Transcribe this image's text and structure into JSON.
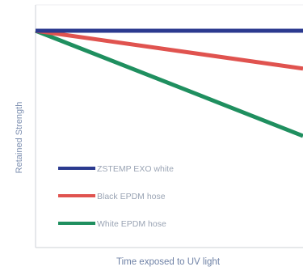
{
  "chart_data": {
    "type": "line",
    "title": "",
    "xlabel": "Time exposed to UV light",
    "ylabel": "Retained Strength",
    "x": [
      0,
      1
    ],
    "xlim": [
      0,
      1
    ],
    "ylim": [
      0,
      1
    ],
    "grid": false,
    "legend_position": "bottom-left",
    "series": [
      {
        "name": "ZSTEMP EXO white",
        "color": "#2b3a8f",
        "values": [
          1.0,
          1.0
        ]
      },
      {
        "name": "Black EPDM hose",
        "color": "#e0534f",
        "values": [
          1.0,
          0.82
        ]
      },
      {
        "name": "White EPDM hose",
        "color": "#1f8f5f",
        "values": [
          1.0,
          0.5
        ]
      }
    ]
  }
}
